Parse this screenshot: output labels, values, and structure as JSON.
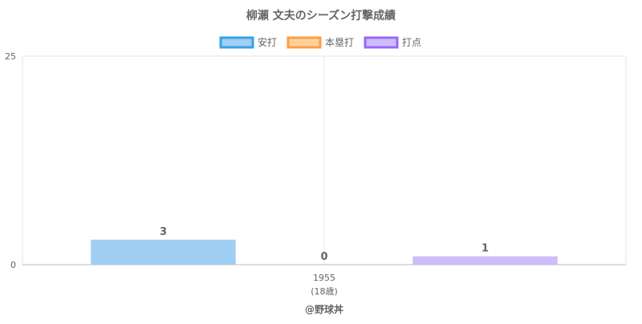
{
  "chart_data": {
    "type": "bar",
    "title": "柳瀬 文夫のシーズン打撃成績",
    "categories": [
      "1955"
    ],
    "category_sublabels": [
      "(18歳)"
    ],
    "series": [
      {
        "name": "安打",
        "values": [
          3
        ],
        "color": "#9fcff3",
        "border_color": "#36a2eb"
      },
      {
        "name": "本塁打",
        "values": [
          0
        ],
        "color": "#ffcf9f",
        "border_color": "#ff9f40"
      },
      {
        "name": "打点",
        "values": [
          1
        ],
        "color": "#d0bcf8",
        "border_color": "#9966ff"
      }
    ],
    "ylim": [
      0,
      25
    ],
    "y_ticks": [
      0,
      25
    ],
    "grid": true,
    "legend_position": "top",
    "data_labels": true,
    "footer": "@野球丼"
  }
}
